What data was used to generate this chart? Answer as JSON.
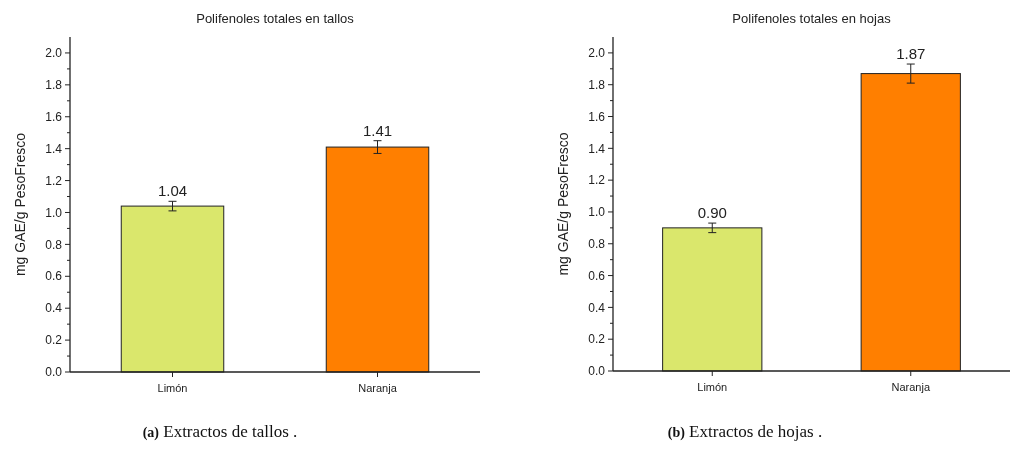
{
  "chart_data": [
    {
      "type": "bar",
      "title": "Polifenoles totales en tallos",
      "ylabel": "mg GAE/g PesoFresco",
      "categories": [
        "Limón",
        "Naranja"
      ],
      "values": [
        1.04,
        1.41
      ],
      "colors": [
        "#dae76c",
        "#ff7f00"
      ],
      "errors": [
        0.03,
        0.04
      ],
      "value_labels": [
        "1.04",
        "1.41"
      ],
      "ylim": [
        0,
        2.1
      ],
      "yticks": [
        {
          "value": 0,
          "label": "0.0"
        },
        {
          "value": 0.1,
          "label": null
        },
        {
          "value": 0.2,
          "label": "0.2"
        },
        {
          "value": 0.3,
          "label": null
        },
        {
          "value": 0.4,
          "label": "0.4"
        },
        {
          "value": 0.5,
          "label": null
        },
        {
          "value": 0.6,
          "label": "0.6"
        },
        {
          "value": 0.7,
          "label": null
        },
        {
          "value": 0.8,
          "label": "0.8"
        },
        {
          "value": 0.9,
          "label": null
        },
        {
          "value": 1,
          "label": "1.0"
        },
        {
          "value": 1.1,
          "label": null
        },
        {
          "value": 1.2,
          "label": "1.2"
        },
        {
          "value": 1.3,
          "label": null
        },
        {
          "value": 1.4,
          "label": "1.4"
        },
        {
          "value": 1.5,
          "label": null
        },
        {
          "value": 1.6,
          "label": "1.6"
        },
        {
          "value": 1.7,
          "label": null
        },
        {
          "value": 1.8,
          "label": "1.8"
        },
        {
          "value": 1.9,
          "label": null
        },
        {
          "value": 2,
          "label": "2.0"
        }
      ],
      "annotations": [
        "(a) Extractos de tallos ."
      ]
    },
    {
      "type": "bar",
      "title": "Polifenoles totales en hojas",
      "ylabel": "mg GAE/g PesoFresco",
      "categories": [
        "Limón",
        "Naranja"
      ],
      "values": [
        0.9,
        1.87
      ],
      "colors": [
        "#dae76c",
        "#ff7f00"
      ],
      "errors": [
        0.03,
        0.06
      ],
      "value_labels": [
        "0.90",
        "1.87"
      ],
      "ylim": [
        0,
        2.1
      ],
      "yticks": [
        {
          "value": 0,
          "label": "0.0"
        },
        {
          "value": 0.1,
          "label": null
        },
        {
          "value": 0.2,
          "label": "0.2"
        },
        {
          "value": 0.3,
          "label": null
        },
        {
          "value": 0.4,
          "label": "0.4"
        },
        {
          "value": 0.5,
          "label": null
        },
        {
          "value": 0.6,
          "label": "0.6"
        },
        {
          "value": 0.7,
          "label": null
        },
        {
          "value": 0.8,
          "label": "0.8"
        },
        {
          "value": 0.9,
          "label": null
        },
        {
          "value": 1,
          "label": "1.0"
        },
        {
          "value": 1.1,
          "label": null
        },
        {
          "value": 1.2,
          "label": "1.2"
        },
        {
          "value": 1.3,
          "label": null
        },
        {
          "value": 1.4,
          "label": "1.4"
        },
        {
          "value": 1.5,
          "label": null
        },
        {
          "value": 1.6,
          "label": "1.6"
        },
        {
          "value": 1.7,
          "label": null
        },
        {
          "value": 1.8,
          "label": "1.8"
        },
        {
          "value": 1.9,
          "label": null
        },
        {
          "value": 2,
          "label": "2.0"
        }
      ],
      "annotations": [
        "(b) Extractos de hojas ."
      ]
    }
  ]
}
